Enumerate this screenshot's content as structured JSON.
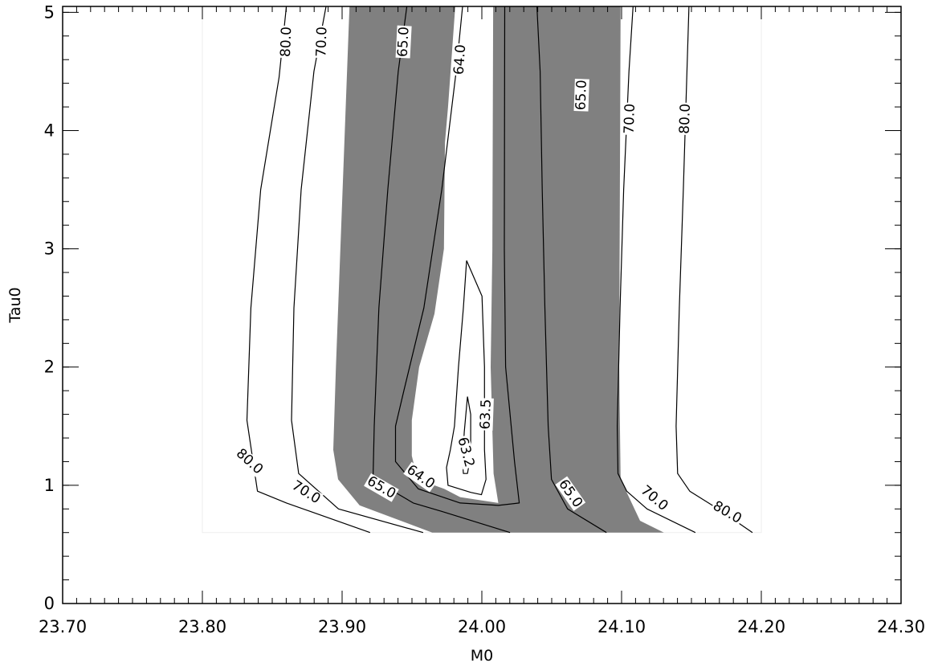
{
  "chart_data": {
    "type": "contour",
    "xlabel": "M0",
    "ylabel": "Tau0",
    "xlim": [
      23.7,
      24.3
    ],
    "ylim": [
      0,
      5.05
    ],
    "x_ticks": [
      {
        "value": 23.7,
        "label": "23.70"
      },
      {
        "value": 23.8,
        "label": "23.80"
      },
      {
        "value": 23.9,
        "label": "23.90"
      },
      {
        "value": 24.0,
        "label": "24.00"
      },
      {
        "value": 24.1,
        "label": "24.10"
      },
      {
        "value": 24.2,
        "label": "24.20"
      },
      {
        "value": 24.3,
        "label": "24.30"
      }
    ],
    "y_ticks": [
      {
        "value": 0,
        "label": "0"
      },
      {
        "value": 1,
        "label": "1"
      },
      {
        "value": 2,
        "label": "2"
      },
      {
        "value": 3,
        "label": "3"
      },
      {
        "value": 4,
        "label": "4"
      },
      {
        "value": 5,
        "label": "5"
      }
    ],
    "x_minor_step": 0.01,
    "y_minor_step": 0.2,
    "grid": false,
    "data_region": {
      "x": [
        23.8,
        24.2
      ],
      "y": [
        0.6,
        5.05
      ]
    },
    "shaded_region": {
      "color": "#808080",
      "outer": [
        [
          23.9053,
          5.05
        ],
        [
          23.8956,
          2.0
        ],
        [
          23.8937,
          1.3
        ],
        [
          23.8971,
          1.05
        ],
        [
          23.9125,
          0.83
        ],
        [
          23.9645,
          0.6
        ],
        [
          24.1303,
          0.6
        ],
        [
          24.1132,
          0.7
        ],
        [
          24.0993,
          1.05
        ],
        [
          24.0983,
          2.0
        ],
        [
          24.0993,
          5.05
        ]
      ],
      "inner_hole": [
        [
          23.981,
          5.05
        ],
        [
          23.9758,
          4.2
        ],
        [
          23.9736,
          3.9
        ],
        [
          23.9729,
          3.0
        ],
        [
          23.9661,
          2.45
        ],
        [
          23.9551,
          2.0
        ],
        [
          23.9499,
          1.55
        ],
        [
          23.9499,
          1.25
        ],
        [
          23.9539,
          1.05
        ],
        [
          23.973,
          0.97
        ],
        [
          23.9845,
          0.9
        ],
        [
          24.0118,
          0.85
        ],
        [
          24.0084,
          1.1
        ],
        [
          24.0063,
          2.0
        ],
        [
          24.0075,
          3.0
        ],
        [
          24.0081,
          5.05
        ]
      ]
    },
    "contours": [
      {
        "level": 80.0,
        "label": "80.0",
        "points": [
          [
            23.8601,
            5.05
          ],
          [
            23.8549,
            4.45
          ],
          [
            23.8417,
            3.5
          ],
          [
            23.8347,
            2.5
          ],
          [
            23.8319,
            1.55
          ],
          [
            23.8394,
            0.95
          ],
          [
            23.8602,
            0.85
          ],
          [
            23.92,
            0.6
          ]
        ]
      },
      {
        "level": 70.0,
        "label": "70.0",
        "points": [
          [
            23.8885,
            5.05
          ],
          [
            23.8798,
            4.5
          ],
          [
            23.8707,
            3.5
          ],
          [
            23.8655,
            2.5
          ],
          [
            23.8638,
            1.55
          ],
          [
            23.8689,
            1.1
          ],
          [
            23.8974,
            0.8
          ],
          [
            23.958,
            0.6
          ]
        ]
      },
      {
        "level": 65.0,
        "label": "65.0",
        "points": [
          [
            23.9463,
            5.05
          ],
          [
            23.9402,
            4.5
          ],
          [
            23.9327,
            3.5
          ],
          [
            23.9263,
            2.5
          ],
          [
            23.923,
            1.5
          ],
          [
            23.9221,
            1.05
          ],
          [
            23.9509,
            0.85
          ],
          [
            23.971,
            0.78
          ],
          [
            24.0202,
            0.6
          ]
        ]
      },
      {
        "level": 64.0,
        "label": "64.0",
        "points": [
          [
            23.9862,
            5.05
          ],
          [
            23.9816,
            4.5
          ],
          [
            23.9713,
            3.5
          ],
          [
            23.9585,
            2.5
          ],
          [
            23.9442,
            1.8
          ],
          [
            23.9382,
            1.5
          ],
          [
            23.9382,
            1.2
          ],
          [
            23.9545,
            0.97
          ],
          [
            23.9845,
            0.85
          ],
          [
            24.0118,
            0.83
          ],
          [
            24.0268,
            0.85
          ],
          [
            24.0234,
            1.2
          ],
          [
            24.017,
            2.0
          ],
          [
            24.0161,
            3.0
          ],
          [
            24.0164,
            5.05
          ]
        ]
      },
      {
        "level": 63.5,
        "label": "63.5",
        "points": [
          [
            23.9891,
            2.9
          ],
          [
            24.0001,
            2.6
          ],
          [
            24.0019,
            2.0
          ],
          [
            24.0019,
            1.3
          ],
          [
            24.003,
            1.05
          ],
          [
            23.9997,
            0.92
          ],
          [
            23.992,
            0.94
          ],
          [
            23.9758,
            1.0
          ],
          [
            23.9747,
            1.15
          ],
          [
            23.9775,
            1.3
          ],
          [
            23.9804,
            1.5
          ],
          [
            23.9833,
            2.0
          ],
          [
            23.9868,
            2.5
          ],
          [
            23.9891,
            2.9
          ]
        ]
      },
      {
        "level": 63.2,
        "label": "63.2",
        "points": [
          [
            23.9897,
            1.75
          ],
          [
            23.992,
            1.6
          ],
          [
            23.992,
            1.25
          ],
          [
            23.9897,
            1.1
          ],
          [
            23.9868,
            1.1
          ],
          [
            23.9862,
            1.2
          ],
          [
            23.9874,
            1.45
          ],
          [
            23.9897,
            1.75
          ]
        ]
      },
      {
        "level": 65.0,
        "label": "65.0",
        "points": [
          [
            24.0394,
            5.05
          ],
          [
            24.0417,
            4.5
          ],
          [
            24.0432,
            3.5
          ],
          [
            24.0451,
            2.5
          ],
          [
            24.0475,
            1.5
          ],
          [
            24.0498,
            1.05
          ],
          [
            24.0614,
            0.8
          ],
          [
            24.0892,
            0.6
          ]
        ]
      },
      {
        "level": 70.0,
        "label": "70.0",
        "points": [
          [
            24.1082,
            5.05
          ],
          [
            24.1053,
            4.5
          ],
          [
            24.1015,
            3.5
          ],
          [
            24.0989,
            2.5
          ],
          [
            24.0969,
            1.5
          ],
          [
            24.0974,
            1.1
          ],
          [
            24.1037,
            0.95
          ],
          [
            24.1182,
            0.8
          ],
          [
            24.1528,
            0.6
          ]
        ]
      },
      {
        "level": 80.0,
        "label": "80.0",
        "points": [
          [
            24.1482,
            5.05
          ],
          [
            24.1468,
            4.5
          ],
          [
            24.1442,
            3.5
          ],
          [
            24.1413,
            2.5
          ],
          [
            24.139,
            1.5
          ],
          [
            24.1401,
            1.1
          ],
          [
            24.1488,
            0.95
          ],
          [
            24.169,
            0.8
          ],
          [
            24.1937,
            0.6
          ]
        ]
      }
    ],
    "contour_labels": [
      {
        "text": "80.0",
        "x": 23.8601,
        "y": 4.75,
        "angle": -88
      },
      {
        "text": "70.0",
        "x": 23.8856,
        "y": 4.75,
        "angle": -88
      },
      {
        "text": "65.0",
        "x": 23.944,
        "y": 4.75,
        "angle": -87
      },
      {
        "text": "64.0",
        "x": 23.9845,
        "y": 4.6,
        "angle": -86
      },
      {
        "text": "80.0",
        "x": 23.8337,
        "y": 1.2,
        "angle": 42
      },
      {
        "text": "70.0",
        "x": 23.8742,
        "y": 0.94,
        "angle": 32
      },
      {
        "text": "65.0",
        "x": 23.9281,
        "y": 0.98,
        "angle": 30
      },
      {
        "text": "64.0",
        "x": 23.9562,
        "y": 1.07,
        "angle": 35
      },
      {
        "text": "63.5",
        "x": 24.003,
        "y": 1.6,
        "angle": -88
      },
      {
        "text": "63.2",
        "x": 23.9885,
        "y": 1.28,
        "angle": 75
      },
      {
        "text": "65.0",
        "x": 24.0714,
        "y": 4.3,
        "angle": -88
      },
      {
        "text": "70.0",
        "x": 24.1059,
        "y": 4.1,
        "angle": -88
      },
      {
        "text": "80.0",
        "x": 24.1456,
        "y": 4.1,
        "angle": -88
      },
      {
        "text": "65.0",
        "x": 24.0634,
        "y": 0.93,
        "angle": 55
      },
      {
        "text": "70.0",
        "x": 24.1234,
        "y": 0.89,
        "angle": 40
      },
      {
        "text": "80.0",
        "x": 24.1756,
        "y": 0.77,
        "angle": 30
      }
    ]
  }
}
